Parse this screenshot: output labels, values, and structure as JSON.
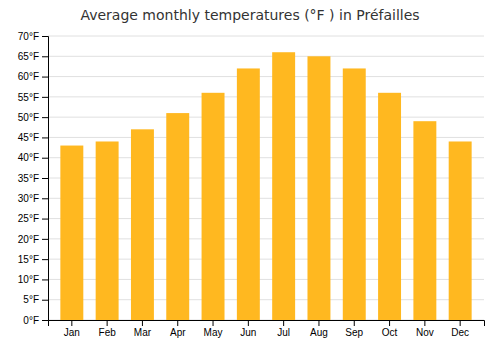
{
  "chart_data": {
    "type": "bar",
    "title": "Average monthly temperatures (°F ) in Préfailles",
    "categories": [
      "Jan",
      "Feb",
      "Mar",
      "Apr",
      "May",
      "Jun",
      "Jul",
      "Aug",
      "Sep",
      "Oct",
      "Nov",
      "Dec"
    ],
    "values": [
      43,
      44,
      47,
      51,
      56,
      62,
      66,
      65,
      62,
      56,
      49,
      44
    ],
    "color": "#FFB820",
    "ylim": [
      0,
      70
    ],
    "yticks": [
      {
        "value": 0,
        "label": "0°F"
      },
      {
        "value": 5,
        "label": "5°F"
      },
      {
        "value": 10,
        "label": "10°F"
      },
      {
        "value": 15,
        "label": "15°F"
      },
      {
        "value": 20,
        "label": "20°F"
      },
      {
        "value": 25,
        "label": "25°F"
      },
      {
        "value": 30,
        "label": "30°F"
      },
      {
        "value": 35,
        "label": "35°F"
      },
      {
        "value": 40,
        "label": "40°F"
      },
      {
        "value": 45,
        "label": "45°F"
      },
      {
        "value": 50,
        "label": "50°F"
      },
      {
        "value": 55,
        "label": "55°F"
      },
      {
        "value": 60,
        "label": "60°F"
      },
      {
        "value": 65,
        "label": "65°F"
      },
      {
        "value": 70,
        "label": "70°F"
      }
    ],
    "grid": true
  }
}
